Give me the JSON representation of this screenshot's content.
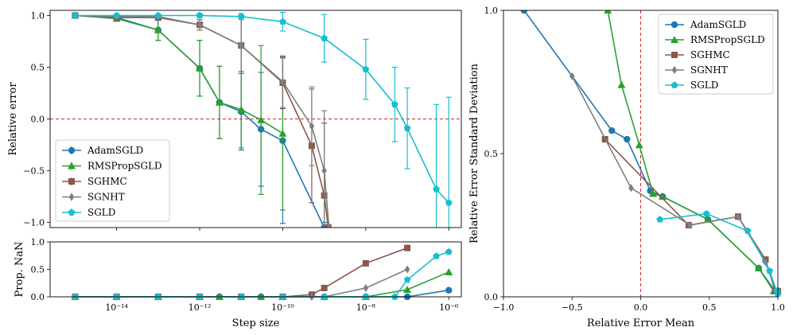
{
  "chart_data": [
    {
      "panel": "relative-error",
      "type": "line",
      "xscale": "log",
      "xlabel": "",
      "ylabel": "Relative error",
      "ylim": [
        -1.05,
        1.05
      ],
      "yticks": [
        "1.0",
        "0.5",
        "0.0",
        "−0.5",
        "−1.0"
      ],
      "reference_line": {
        "y": 0,
        "style": "dashed",
        "color": "#d62728"
      },
      "legend_position": "lower-left",
      "series": [
        {
          "name": "AdamSGLD",
          "color": "#1f77b4",
          "marker": "circle",
          "x": [
            1e-15,
            1e-14,
            1e-13,
            1e-12,
            3e-12,
            1e-11,
            3e-11,
            1e-10,
            1e-09
          ],
          "y": [
            1.0,
            0.98,
            0.86,
            0.49,
            0.16,
            0.07,
            -0.1,
            -0.21,
            -1.05
          ],
          "err": [
            0.02,
            0.02,
            0.1,
            0.27,
            0.35,
            0.37,
            0.55,
            0.8,
            0.05
          ]
        },
        {
          "name": "RMSPropSGLD",
          "color": "#2ca02c",
          "marker": "triangle",
          "x": [
            1e-15,
            1e-14,
            1e-13,
            1e-12,
            3e-12,
            1e-11,
            3e-11,
            1e-10
          ],
          "y": [
            1.0,
            0.97,
            0.86,
            0.49,
            0.16,
            0.09,
            -0.01,
            -0.14
          ],
          "err": [
            0.02,
            0.02,
            0.1,
            0.27,
            0.35,
            0.37,
            0.72,
            0.74
          ]
        },
        {
          "name": "SGHMC",
          "color": "#8c564b",
          "marker": "square",
          "x": [
            1e-15,
            1e-14,
            1e-13,
            1e-12,
            1e-11,
            1e-10,
            5e-10,
            1e-09,
            1.25e-09
          ],
          "y": [
            1.0,
            0.98,
            0.98,
            0.91,
            0.71,
            0.35,
            -0.26,
            -0.74,
            -1.05
          ],
          "err": [
            0.01,
            0.01,
            0.02,
            0.05,
            0.27,
            0.25,
            0.55,
            0.7,
            0.03
          ]
        },
        {
          "name": "SGNHT",
          "color": "#7f7f7f",
          "marker": "diamond",
          "x": [
            1e-15,
            1e-14,
            1e-13,
            1e-12,
            1e-11,
            1e-10,
            5e-10,
            1e-09,
            1.3e-09
          ],
          "y": [
            1.0,
            0.99,
            0.99,
            0.91,
            0.71,
            0.36,
            -0.07,
            -0.5,
            -1.05
          ],
          "err": [
            0.01,
            0.01,
            0.01,
            0.05,
            0.27,
            0.25,
            0.38,
            0.58,
            0.03
          ]
        },
        {
          "name": "SGLD",
          "color": "#17becf",
          "marker": "pentagon",
          "x": [
            1e-15,
            1e-14,
            1e-13,
            1e-12,
            1e-11,
            1e-10,
            1e-09,
            1e-08,
            5e-08,
            1e-07,
            5e-07,
            1e-06
          ],
          "y": [
            1.0,
            1.0,
            1.0,
            1.0,
            0.99,
            0.94,
            0.78,
            0.48,
            0.14,
            -0.09,
            -0.68,
            -0.81
          ],
          "err": [
            0.01,
            0.01,
            0.01,
            0.02,
            0.03,
            0.09,
            0.23,
            0.29,
            0.36,
            0.39,
            0.82,
            1.02
          ]
        }
      ]
    },
    {
      "panel": "prop-nan",
      "type": "line",
      "xscale": "log",
      "xlabel": "Step size",
      "ylabel": "Prop. NaN",
      "xticks": [
        {
          "value": 1e-14,
          "label": "10⁻¹⁴"
        },
        {
          "value": 1e-12,
          "label": "10⁻¹²"
        },
        {
          "value": 1e-10,
          "label": "10⁻¹⁰"
        },
        {
          "value": 1e-08,
          "label": "10⁻⁸"
        },
        {
          "value": 1e-06,
          "label": "10⁻⁶"
        }
      ],
      "ylim": [
        0,
        1
      ],
      "yticks": [
        "0.0",
        "0.5",
        "1.0"
      ],
      "series": [
        {
          "name": "AdamSGLD",
          "color": "#1f77b4",
          "marker": "circle",
          "x": [
            1e-15,
            1e-14,
            1e-13,
            1e-12,
            3e-12,
            1e-11,
            3e-11,
            1e-10,
            1e-09,
            1e-08,
            1e-07,
            1e-06
          ],
          "y": [
            0,
            0,
            0,
            0,
            0,
            0,
            0,
            0,
            0,
            0,
            0,
            0.12
          ]
        },
        {
          "name": "RMSPropSGLD",
          "color": "#2ca02c",
          "marker": "triangle",
          "x": [
            1e-15,
            1e-14,
            1e-13,
            1e-12,
            3e-12,
            1e-11,
            3e-11,
            1e-10,
            1e-09,
            1e-08,
            1e-07,
            1e-06
          ],
          "y": [
            0,
            0,
            0,
            0,
            0,
            0,
            0,
            0,
            0,
            0,
            0.13,
            0.45
          ]
        },
        {
          "name": "SGHMC",
          "color": "#8c564b",
          "marker": "square",
          "x": [
            1e-15,
            1e-14,
            1e-13,
            1e-12,
            1e-11,
            1e-10,
            5e-10,
            1e-09,
            1e-08,
            1e-07
          ],
          "y": [
            0,
            0,
            0,
            0,
            0,
            0,
            0.04,
            0.16,
            0.61,
            0.89
          ]
        },
        {
          "name": "SGNHT",
          "color": "#7f7f7f",
          "marker": "diamond",
          "x": [
            1e-15,
            1e-14,
            1e-13,
            1e-12,
            1e-11,
            1e-10,
            5e-10,
            1e-09,
            1e-08,
            1e-07
          ],
          "y": [
            0,
            0,
            0,
            0,
            0,
            0,
            0,
            0,
            0.16,
            0.5
          ]
        },
        {
          "name": "SGLD",
          "color": "#17becf",
          "marker": "pentagon",
          "x": [
            1e-15,
            1e-14,
            1e-13,
            1e-12,
            1e-11,
            1e-10,
            1e-09,
            1e-08,
            5e-08,
            1e-07,
            5e-07,
            1e-06
          ],
          "y": [
            0,
            0,
            0,
            0,
            0,
            0,
            0,
            0,
            0,
            0.31,
            0.74,
            0.82
          ]
        }
      ]
    },
    {
      "panel": "mean-vs-std",
      "type": "line",
      "xlabel": "Relative Error Mean",
      "ylabel": "Relative Error Standard Deviation",
      "xlim": [
        -1.0,
        1.0
      ],
      "ylim": [
        0.0,
        1.0
      ],
      "xticks": [
        "−1.0",
        "−0.5",
        "0.0",
        "0.5",
        "1.0"
      ],
      "yticks": [
        "0.0",
        "0.5",
        "1.0"
      ],
      "reference_line": {
        "x": 0,
        "style": "dashed",
        "color": "#d62728"
      },
      "legend_position": "upper-right",
      "series": [
        {
          "name": "AdamSGLD",
          "color": "#1f77b4",
          "marker": "circle",
          "x": [
            -0.85,
            -0.21,
            -0.1,
            0.07,
            0.16,
            0.49,
            0.86,
            0.98,
            1.0
          ],
          "y": [
            1.0,
            0.58,
            0.55,
            0.37,
            0.35,
            0.27,
            0.1,
            0.02,
            0.02
          ]
        },
        {
          "name": "RMSPropSGLD",
          "color": "#2ca02c",
          "marker": "triangle",
          "x": [
            -0.24,
            -0.14,
            -0.01,
            0.09,
            0.16,
            0.49,
            0.86,
            0.97,
            1.0
          ],
          "y": [
            1.0,
            0.74,
            0.53,
            0.36,
            0.35,
            0.27,
            0.1,
            0.02,
            0.02
          ]
        },
        {
          "name": "SGHMC",
          "color": "#8c564b",
          "marker": "square",
          "x": [
            -0.26,
            0.35,
            0.71,
            0.91,
            0.98,
            1.0
          ],
          "y": [
            0.55,
            0.25,
            0.28,
            0.13,
            0.02,
            0.02
          ]
        },
        {
          "name": "SGNHT",
          "color": "#7f7f7f",
          "marker": "diamond",
          "x": [
            -0.5,
            -0.07,
            0.36,
            0.71,
            0.91,
            0.99,
            1.0
          ],
          "y": [
            0.77,
            0.38,
            0.25,
            0.28,
            0.12,
            0.02,
            0.02
          ]
        },
        {
          "name": "SGLD",
          "color": "#17becf",
          "marker": "pentagon",
          "x": [
            0.14,
            0.48,
            0.78,
            0.94,
            0.99,
            1.0
          ],
          "y": [
            0.27,
            0.29,
            0.23,
            0.09,
            0.02,
            0.01
          ]
        }
      ]
    }
  ]
}
